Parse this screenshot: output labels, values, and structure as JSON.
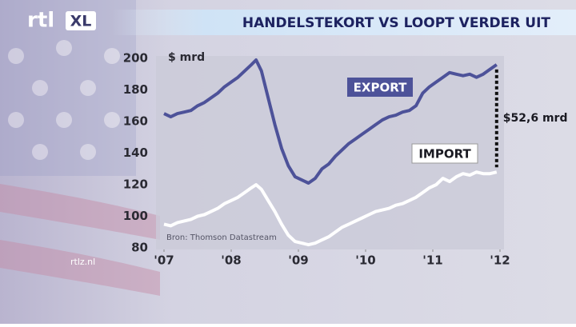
{
  "channel": {
    "logo": "rtl",
    "logo_badge": "XL",
    "website": "rtlz.nl"
  },
  "chart_data": {
    "type": "line",
    "title": "HANDELSTEKORT VS LOOPT VERDER UIT",
    "y_unit": "$ mrd",
    "source": "Bron: Thomson Datastream",
    "annotation": "$52,6 mrd",
    "x": [
      2007.0,
      2007.1,
      2007.2,
      2007.3,
      2007.4,
      2007.5,
      2007.6,
      2007.7,
      2007.8,
      2007.9,
      2008.0,
      2008.1,
      2008.2,
      2008.3,
      2008.37,
      2008.45,
      2008.55,
      2008.65,
      2008.75,
      2008.85,
      2008.95,
      2009.05,
      2009.15,
      2009.25,
      2009.35,
      2009.45,
      2009.55,
      2009.65,
      2009.75,
      2009.85,
      2009.95,
      2010.05,
      2010.15,
      2010.25,
      2010.35,
      2010.45,
      2010.55,
      2010.65,
      2010.75,
      2010.85,
      2010.95,
      2011.05,
      2011.15,
      2011.25,
      2011.35,
      2011.45,
      2011.55,
      2011.65,
      2011.75,
      2011.85,
      2011.95
    ],
    "series": [
      {
        "name": "EXPORT",
        "color": "#4d5299",
        "values": [
          165,
          163,
          165,
          166,
          167,
          170,
          172,
          175,
          178,
          182,
          185,
          188,
          192,
          196,
          199,
          192,
          175,
          158,
          143,
          132,
          125,
          123,
          121,
          124,
          130,
          133,
          138,
          142,
          146,
          149,
          152,
          155,
          158,
          161,
          163,
          164,
          166,
          167,
          170,
          178,
          182,
          185,
          188,
          191,
          190,
          189,
          190,
          188,
          190,
          193,
          196
        ]
      },
      {
        "name": "IMPORT",
        "color": "#ffffff",
        "values": [
          95,
          94,
          96,
          97,
          98,
          100,
          101,
          103,
          105,
          108,
          110,
          112,
          115,
          118,
          120,
          117,
          110,
          103,
          95,
          88,
          84,
          83,
          82,
          83,
          85,
          87,
          90,
          93,
          95,
          97,
          99,
          101,
          103,
          104,
          105,
          107,
          108,
          110,
          112,
          115,
          118,
          120,
          124,
          122,
          125,
          127,
          126,
          128,
          127,
          127,
          128
        ]
      }
    ],
    "xlim": [
      2007,
      2012
    ],
    "xticks": [
      {
        "value": 2007,
        "label": "'07"
      },
      {
        "value": 2008,
        "label": "'08"
      },
      {
        "value": 2009,
        "label": "'09"
      },
      {
        "value": 2010,
        "label": "'10"
      },
      {
        "value": 2011,
        "label": "'11"
      },
      {
        "value": 2012,
        "label": "'12"
      }
    ],
    "ylim": [
      80,
      200
    ],
    "yticks": [
      80,
      100,
      120,
      140,
      160,
      180,
      200
    ],
    "grid": false
  }
}
